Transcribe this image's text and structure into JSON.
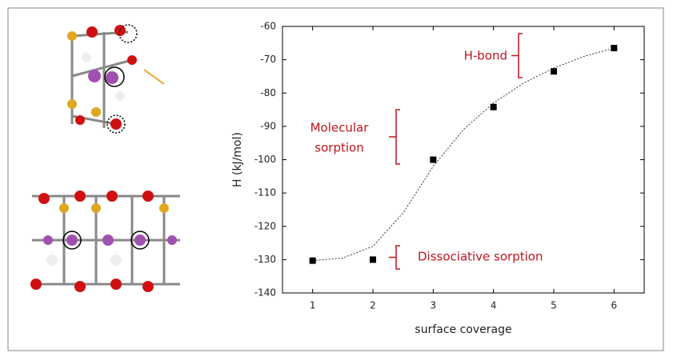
{
  "chart_data": {
    "type": "scatter",
    "x_label": "surface coverage",
    "y_label": "H (kJ/mol)",
    "x": [
      1,
      2,
      3,
      4,
      5,
      6
    ],
    "values": [
      -130.3,
      -130,
      -100,
      -84.2,
      -73.5,
      -66.5
    ],
    "color": "#000000",
    "curve": {
      "x": [
        1,
        1.5,
        2,
        2.5,
        3,
        3.5,
        4,
        4.5,
        5,
        5.5,
        6
      ],
      "values": [
        -130.3,
        -129.5,
        -126,
        -116,
        -102,
        -91,
        -83,
        -77,
        -72.5,
        -69,
        -66.5
      ]
    },
    "xlim": [
      0.5,
      6.5
    ],
    "xticks": [
      1,
      2,
      3,
      4,
      5,
      6
    ],
    "ylim": [
      -140,
      -60
    ],
    "yticks": [
      -140,
      -130,
      -120,
      -110,
      -100,
      -90,
      -80,
      -70,
      -60
    ],
    "annotations": {
      "h_bond": "H-bond",
      "molecular": [
        "Molecular",
        "sorption"
      ],
      "dissociative": "Dissociative sorption"
    },
    "annotation_color": "#c0141c"
  }
}
